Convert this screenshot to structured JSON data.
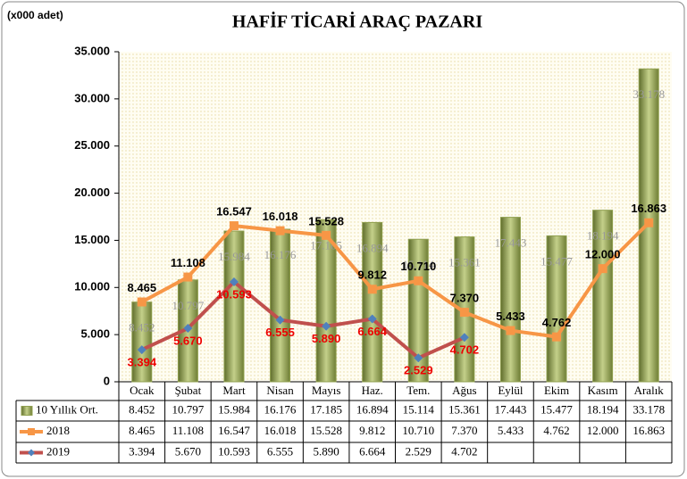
{
  "chart_data": {
    "type": "bar",
    "title": "HAFİF TİCARİ ARAÇ PAZARI",
    "unit_label": "(x000 adet)",
    "categories": [
      "Ocak",
      "Şubat",
      "Mart",
      "Nisan",
      "Mayıs",
      "Haz.",
      "Tem.",
      "Ağus",
      "Eylül",
      "Ekim",
      "Kasım",
      "Aralık"
    ],
    "ylim": [
      0,
      35
    ],
    "yticks": [
      0,
      {
        "value": 5,
        "label": "5.000"
      },
      {
        "value": 10,
        "label": "10.000"
      },
      {
        "value": 15,
        "label": "15.000"
      },
      {
        "value": 20,
        "label": "20.000"
      },
      {
        "value": 25,
        "label": "25.000"
      },
      {
        "value": 30,
        "label": "30.000"
      },
      {
        "value": 35,
        "label": "35.000"
      }
    ],
    "series": [
      {
        "name": "10 Yıllık Ort.",
        "type": "bar",
        "color": "#8f9f4e",
        "values": [
          8.452,
          10.797,
          15.984,
          16.176,
          17.185,
          16.894,
          15.114,
          15.361,
          17.443,
          15.477,
          18.194,
          33.178
        ],
        "value_labels": [
          "8.452",
          "10.797",
          "15.984",
          "16.176",
          "17.185",
          "16.894",
          "15.114",
          "15.361",
          "17.443",
          "15.477",
          "18.194",
          "33.178"
        ]
      },
      {
        "name": "2018",
        "type": "line",
        "color": "#f79646",
        "values": [
          8.465,
          11.108,
          16.547,
          16.018,
          15.528,
          9.812,
          10.71,
          7.37,
          5.433,
          4.762,
          12,
          16.863
        ],
        "value_labels": [
          "8.465",
          "11.108",
          "16.547",
          "16.018",
          "15.528",
          "9.812",
          "10.710",
          "7.370",
          "5.433",
          "4.762",
          "12.000",
          "16.863"
        ]
      },
      {
        "name": "2019",
        "type": "line",
        "color": "#c0504d",
        "marker_color": "#4f81bd",
        "values": [
          3.394,
          5.67,
          10.593,
          6.555,
          5.89,
          6.664,
          2.529,
          4.702,
          null,
          null,
          null,
          null
        ],
        "value_labels": [
          "3.394",
          "5.670",
          "10.593",
          "6.555",
          "5.890",
          "6.664",
          "2.529",
          "4.702",
          null,
          null,
          null,
          null
        ]
      }
    ]
  }
}
